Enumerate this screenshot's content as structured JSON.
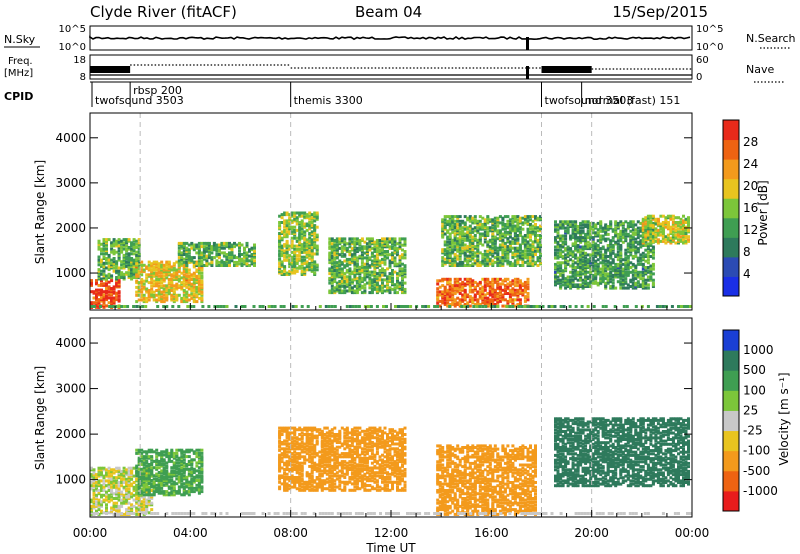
{
  "header": {
    "station": "Clyde River (fitACF)",
    "beam": "Beam 04",
    "date": "15/Sep/2015"
  },
  "panels": {
    "nsky": {
      "label": "N.Sky",
      "ytick_top": "10^5",
      "ytick_bottom": "10^0",
      "right_label": "N.Search",
      "right_tick_top": "10^5",
      "right_tick_bottom": "10^0"
    },
    "freq": {
      "label_top": "Freq.",
      "label_unit": "[MHz]",
      "ytick_top": "18",
      "ytick_bottom": "8",
      "right_label": "Nave",
      "right_tick_top": "60",
      "right_tick_bottom": "0"
    },
    "cpid": {
      "label": "CPID"
    }
  },
  "cpid_segments": [
    {
      "label": "twofsound 3503",
      "start_h": 0.0
    },
    {
      "label": "rbsp 200",
      "start_h": 1.6
    },
    {
      "label": "themis 3300",
      "start_h": 8.0
    },
    {
      "label": "twofsound 3503",
      "start_h": 18.0
    },
    {
      "label": "normal (fast) 151",
      "start_h": 19.6
    }
  ],
  "colors": {
    "power": [
      "#1a2fe6",
      "#2b4bb4",
      "#2e7a5c",
      "#3f9e52",
      "#7cc63a",
      "#e8c41f",
      "#f39a1c",
      "#ee6312",
      "#e82a1a"
    ],
    "velocity": [
      "#e81c1c",
      "#ee6312",
      "#f39a1c",
      "#e8c41f",
      "#c8c8c8",
      "#7cc63a",
      "#3f9e52",
      "#2e7a5c",
      "#1a3fd4"
    ]
  },
  "chart_data": [
    {
      "type": "heatmap",
      "title": "Power",
      "ylabel": "Slant Range [km]",
      "xlabel": "Time UT",
      "x_ticks": [
        "00:00",
        "04:00",
        "08:00",
        "12:00",
        "16:00",
        "20:00",
        "00:00"
      ],
      "y_ticks": [
        "1000",
        "2000",
        "3000",
        "4000"
      ],
      "y_range_km": [
        180,
        4550
      ],
      "x_range_hours": [
        0,
        24
      ],
      "colorbar": {
        "label": "Power [dB]",
        "ticks": [
          "4",
          "8",
          "12",
          "16",
          "20",
          "24",
          "28"
        ],
        "range": [
          0,
          32
        ]
      },
      "echo_regions": [
        {
          "t0": 0.0,
          "t1": 1.2,
          "r0": 200,
          "r1": 900,
          "value": 28
        },
        {
          "t0": 0.3,
          "t1": 2.0,
          "r0": 900,
          "r1": 1800,
          "value": 14
        },
        {
          "t0": 1.8,
          "t1": 4.5,
          "r0": 400,
          "r1": 1300,
          "value": 20
        },
        {
          "t0": 3.5,
          "t1": 6.5,
          "r0": 1200,
          "r1": 1700,
          "value": 14
        },
        {
          "t0": 7.5,
          "t1": 9.0,
          "r0": 1000,
          "r1": 2400,
          "value": 16
        },
        {
          "t0": 9.5,
          "t1": 12.5,
          "r0": 600,
          "r1": 1800,
          "value": 14
        },
        {
          "t0": 13.8,
          "t1": 17.5,
          "r0": 300,
          "r1": 900,
          "value": 26
        },
        {
          "t0": 14.0,
          "t1": 18.0,
          "r0": 1200,
          "r1": 2300,
          "value": 14
        },
        {
          "t0": 18.5,
          "t1": 22.5,
          "r0": 700,
          "r1": 2200,
          "value": 12
        },
        {
          "t0": 22.0,
          "t1": 24.0,
          "r0": 1700,
          "r1": 2300,
          "value": 18
        }
      ]
    },
    {
      "type": "heatmap",
      "title": "Velocity",
      "ylabel": "Slant Range [km]",
      "xlabel": "Time UT",
      "x_ticks": [
        "00:00",
        "04:00",
        "08:00",
        "12:00",
        "16:00",
        "20:00",
        "00:00"
      ],
      "y_ticks": [
        "1000",
        "2000",
        "3000",
        "4000"
      ],
      "y_range_km": [
        180,
        4550
      ],
      "x_range_hours": [
        0,
        24
      ],
      "colorbar": {
        "label": "Velocity [m s⁻¹]",
        "ticks": [
          "1000",
          "500",
          "100",
          "25",
          "-25",
          "-100",
          "-500",
          "-1000"
        ]
      },
      "echo_regions": [
        {
          "t0": 0.0,
          "t1": 2.5,
          "r0": 200,
          "r1": 1300,
          "value": 0
        },
        {
          "t0": 1.8,
          "t1": 4.5,
          "r0": 700,
          "r1": 1700,
          "value": 150
        },
        {
          "t0": 7.5,
          "t1": 12.5,
          "r0": 800,
          "r1": 2200,
          "value": -300
        },
        {
          "t0": 13.8,
          "t1": 17.8,
          "r0": 200,
          "r1": 1800,
          "value": -400
        },
        {
          "t0": 18.5,
          "t1": 24.0,
          "r0": 900,
          "r1": 2400,
          "value": 700
        }
      ]
    }
  ],
  "x_axis_title": "Time UT"
}
